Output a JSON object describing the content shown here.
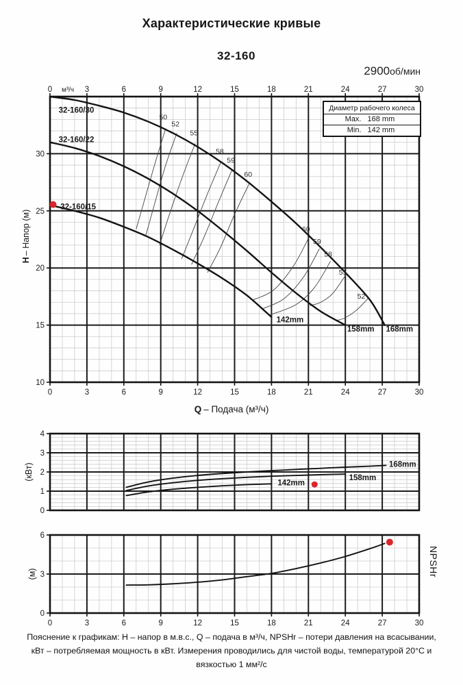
{
  "header": {
    "title": "Характеристические кривые",
    "model": "32-160",
    "rpm_value": "2900",
    "rpm_unit": "об/мин"
  },
  "legend_box": {
    "title": "Диаметр рабочего колеса",
    "rows": [
      {
        "label": "Max.",
        "value": "168 mm"
      },
      {
        "label": "Min.",
        "value": "142 mm"
      }
    ]
  },
  "colors": {
    "ink": "#1b1b1b",
    "grid_minor": "#cccccc",
    "grid_major": "#1b1b1b",
    "curve": "#131313",
    "efficiency_line": "#444444",
    "marker": "#d8262c"
  },
  "chart_data": [
    {
      "type": "line",
      "id": "head-flow",
      "x": {
        "min": 0,
        "max": 30,
        "major_step": 3,
        "minor_step": 1,
        "ticks": [
          0,
          3,
          6,
          9,
          12,
          15,
          18,
          21,
          24,
          27,
          30
        ],
        "unit": "м³/ч",
        "title_prefix": "Q",
        "title_rest": "– Подача (м³/ч)"
      },
      "y": {
        "min": 10,
        "max": 35,
        "major_step": 5,
        "minor_step": 1,
        "ticks": [
          30,
          25,
          20,
          15,
          10
        ],
        "title_prefix": "H",
        "title_rest": "– Напор (м)"
      },
      "series": [
        {
          "name": "32-160/30",
          "impeller": "168 mm",
          "points": [
            [
              0,
              35.0
            ],
            [
              2,
              34.7
            ],
            [
              4,
              34.2
            ],
            [
              6,
              33.6
            ],
            [
              8,
              32.8
            ],
            [
              10,
              31.8
            ],
            [
              12,
              30.6
            ],
            [
              14,
              29.2
            ],
            [
              16,
              27.6
            ],
            [
              18,
              25.8
            ],
            [
              20,
              23.9
            ],
            [
              22,
              21.8
            ],
            [
              24,
              19.6
            ],
            [
              26,
              17.2
            ],
            [
              27.2,
              15.0
            ]
          ],
          "name_label": {
            "text": "32-160/30",
            "pos": [
              0.7,
              33.6
            ]
          },
          "end_label": {
            "text": "168mm",
            "pos": [
              27.3,
              14.45
            ]
          }
        },
        {
          "name": "32-160/22",
          "impeller": "158 mm",
          "points": [
            [
              0,
              31.0
            ],
            [
              2,
              30.5
            ],
            [
              4,
              29.8
            ],
            [
              6,
              28.9
            ],
            [
              8,
              27.8
            ],
            [
              10,
              26.5
            ],
            [
              12,
              25.0
            ],
            [
              14,
              23.3
            ],
            [
              16,
              21.5
            ],
            [
              18,
              19.6
            ],
            [
              20,
              17.8
            ],
            [
              22,
              16.2
            ],
            [
              24,
              15.0
            ]
          ],
          "name_label": {
            "text": "32-160/22",
            "pos": [
              0.7,
              31.0
            ]
          },
          "end_label": {
            "text": "158mm",
            "pos": [
              24.15,
              14.45
            ]
          }
        },
        {
          "name": "32-160/15",
          "impeller": "142 mm",
          "points": [
            [
              0,
              25.5
            ],
            [
              2,
              25.0
            ],
            [
              4,
              24.4
            ],
            [
              6,
              23.6
            ],
            [
              8,
              22.7
            ],
            [
              10,
              21.6
            ],
            [
              12,
              20.4
            ],
            [
              14,
              19.1
            ],
            [
              16,
              17.6
            ],
            [
              18,
              15.7
            ]
          ],
          "name_label": {
            "text": "32-160/15",
            "pos": [
              0.85,
              25.15
            ]
          },
          "end_label": {
            "text": "142mm",
            "pos": [
              18.4,
              15.25
            ]
          }
        }
      ],
      "efficiency_lines": [
        {
          "label": "50",
          "label_pos": [
            9.2,
            33.0
          ],
          "points": [
            [
              9.4,
              32.2
            ],
            [
              8.6,
              29.4
            ],
            [
              7.8,
              26.4
            ],
            [
              7.0,
              23.4
            ]
          ]
        },
        {
          "label": "52",
          "label_pos": [
            10.2,
            32.4
          ],
          "points": [
            [
              10.3,
              31.8
            ],
            [
              9.4,
              29.0
            ],
            [
              8.6,
              26.0
            ],
            [
              7.8,
              22.9
            ]
          ]
        },
        {
          "label": "55",
          "label_pos": [
            11.7,
            31.6
          ],
          "points": [
            [
              11.8,
              30.9
            ],
            [
              10.8,
              28.1
            ],
            [
              9.8,
              25.0
            ],
            [
              8.9,
              22.0
            ]
          ]
        },
        {
          "label": "58",
          "label_pos": [
            13.8,
            30.0
          ],
          "points": [
            [
              13.9,
              29.3
            ],
            [
              12.8,
              26.5
            ],
            [
              11.7,
              23.5
            ],
            [
              10.7,
              20.8
            ]
          ]
        },
        {
          "label": "59",
          "label_pos": [
            14.7,
            29.2
          ],
          "points": [
            [
              14.8,
              28.6
            ],
            [
              13.7,
              25.8
            ],
            [
              12.6,
              22.9
            ],
            [
              11.5,
              20.3
            ]
          ]
        },
        {
          "label": "60",
          "label_pos": [
            16.1,
            28.0
          ],
          "points": [
            [
              16.2,
              27.4
            ],
            [
              15.0,
              24.7
            ],
            [
              13.9,
              21.9
            ],
            [
              12.8,
              19.6
            ]
          ]
        },
        {
          "label": "60",
          "label_pos": [
            20.8,
            23.2
          ],
          "points": [
            [
              21.1,
              22.8
            ],
            [
              19.8,
              20.2
            ],
            [
              18.2,
              18.1
            ],
            [
              16.5,
              17.2
            ]
          ]
        },
        {
          "label": "59",
          "label_pos": [
            21.7,
            22.1
          ],
          "points": [
            [
              21.9,
              21.7
            ],
            [
              20.6,
              19.2
            ],
            [
              19.0,
              17.3
            ],
            [
              17.2,
              16.4
            ]
          ]
        },
        {
          "label": "58",
          "label_pos": [
            22.6,
            21.0
          ],
          "points": [
            [
              22.8,
              20.6
            ],
            [
              21.5,
              18.3
            ],
            [
              20.0,
              16.8
            ],
            [
              17.9,
              15.9
            ]
          ]
        },
        {
          "label": "55",
          "label_pos": [
            23.8,
            19.4
          ],
          "points": [
            [
              24.1,
              19.5
            ],
            [
              23.0,
              17.8
            ],
            [
              22.0,
              17.0
            ],
            [
              21.1,
              16.7
            ]
          ]
        },
        {
          "label": "52",
          "label_pos": [
            25.3,
            17.3
          ],
          "points": [
            [
              25.9,
              17.4
            ],
            [
              24.9,
              16.3
            ],
            [
              23.9,
              15.6
            ],
            [
              23.2,
              15.4
            ]
          ]
        }
      ],
      "marker": {
        "pos": [
          0.25,
          25.55
        ]
      }
    },
    {
      "type": "line",
      "id": "power",
      "y": {
        "min": 0,
        "max": 4,
        "major_step": 1,
        "minor_step": 0.2,
        "ticks": [
          4,
          3,
          2,
          1,
          0
        ],
        "title": "(кВт)"
      },
      "series": [
        {
          "name": "168mm",
          "points": [
            [
              6.2,
              1.2
            ],
            [
              8,
              1.48
            ],
            [
              10,
              1.68
            ],
            [
              12,
              1.82
            ],
            [
              14,
              1.92
            ],
            [
              16,
              2.0
            ],
            [
              18,
              2.07
            ],
            [
              20,
              2.13
            ],
            [
              22,
              2.19
            ],
            [
              24,
              2.25
            ],
            [
              26,
              2.3
            ],
            [
              27.3,
              2.34
            ]
          ],
          "end_label": {
            "text": "168mm",
            "pos": [
              27.55,
              2.26
            ]
          }
        },
        {
          "name": "158mm",
          "points": [
            [
              6.2,
              1.03
            ],
            [
              8,
              1.27
            ],
            [
              10,
              1.44
            ],
            [
              12,
              1.56
            ],
            [
              14,
              1.65
            ],
            [
              16,
              1.72
            ],
            [
              18,
              1.78
            ],
            [
              20,
              1.82
            ],
            [
              22,
              1.86
            ],
            [
              24,
              1.89
            ]
          ],
          "end_label": {
            "text": "158mm",
            "pos": [
              24.3,
              1.57
            ]
          }
        },
        {
          "name": "142mm",
          "points": [
            [
              6.2,
              0.77
            ],
            [
              8,
              0.96
            ],
            [
              10,
              1.1
            ],
            [
              12,
              1.2
            ],
            [
              14,
              1.28
            ],
            [
              16,
              1.34
            ],
            [
              18,
              1.38
            ]
          ],
          "end_label": {
            "text": "142mm",
            "pos": [
              18.5,
              1.3
            ]
          }
        }
      ],
      "marker": {
        "pos": [
          21.5,
          1.35
        ]
      }
    },
    {
      "type": "line",
      "id": "npsh",
      "y": {
        "min": 0,
        "max": 6,
        "major_step": 3,
        "minor_step": 1,
        "ticks": [
          6,
          3,
          0
        ],
        "title_left": "(м)",
        "title_right": "NPSHr"
      },
      "series": [
        {
          "name": "NPSHr",
          "points": [
            [
              6.2,
              2.15
            ],
            [
              8,
              2.17
            ],
            [
              10,
              2.25
            ],
            [
              12,
              2.37
            ],
            [
              14,
              2.55
            ],
            [
              16,
              2.8
            ],
            [
              18,
              3.05
            ],
            [
              20,
              3.42
            ],
            [
              22,
              3.85
            ],
            [
              24,
              4.35
            ],
            [
              26,
              4.95
            ],
            [
              27.2,
              5.35
            ]
          ]
        }
      ],
      "marker": {
        "pos": [
          27.6,
          5.45
        ]
      }
    }
  ],
  "footer": {
    "text": "Пояснение к графикам: H – напор в м.в.с., Q – подача в м³/ч, NPSHr – потери давления на всасывании, кВт – потребляемая мощность в кВт. Измерения проводились для чистой воды, температурой 20°C и вязкостью 1 мм²/с"
  }
}
